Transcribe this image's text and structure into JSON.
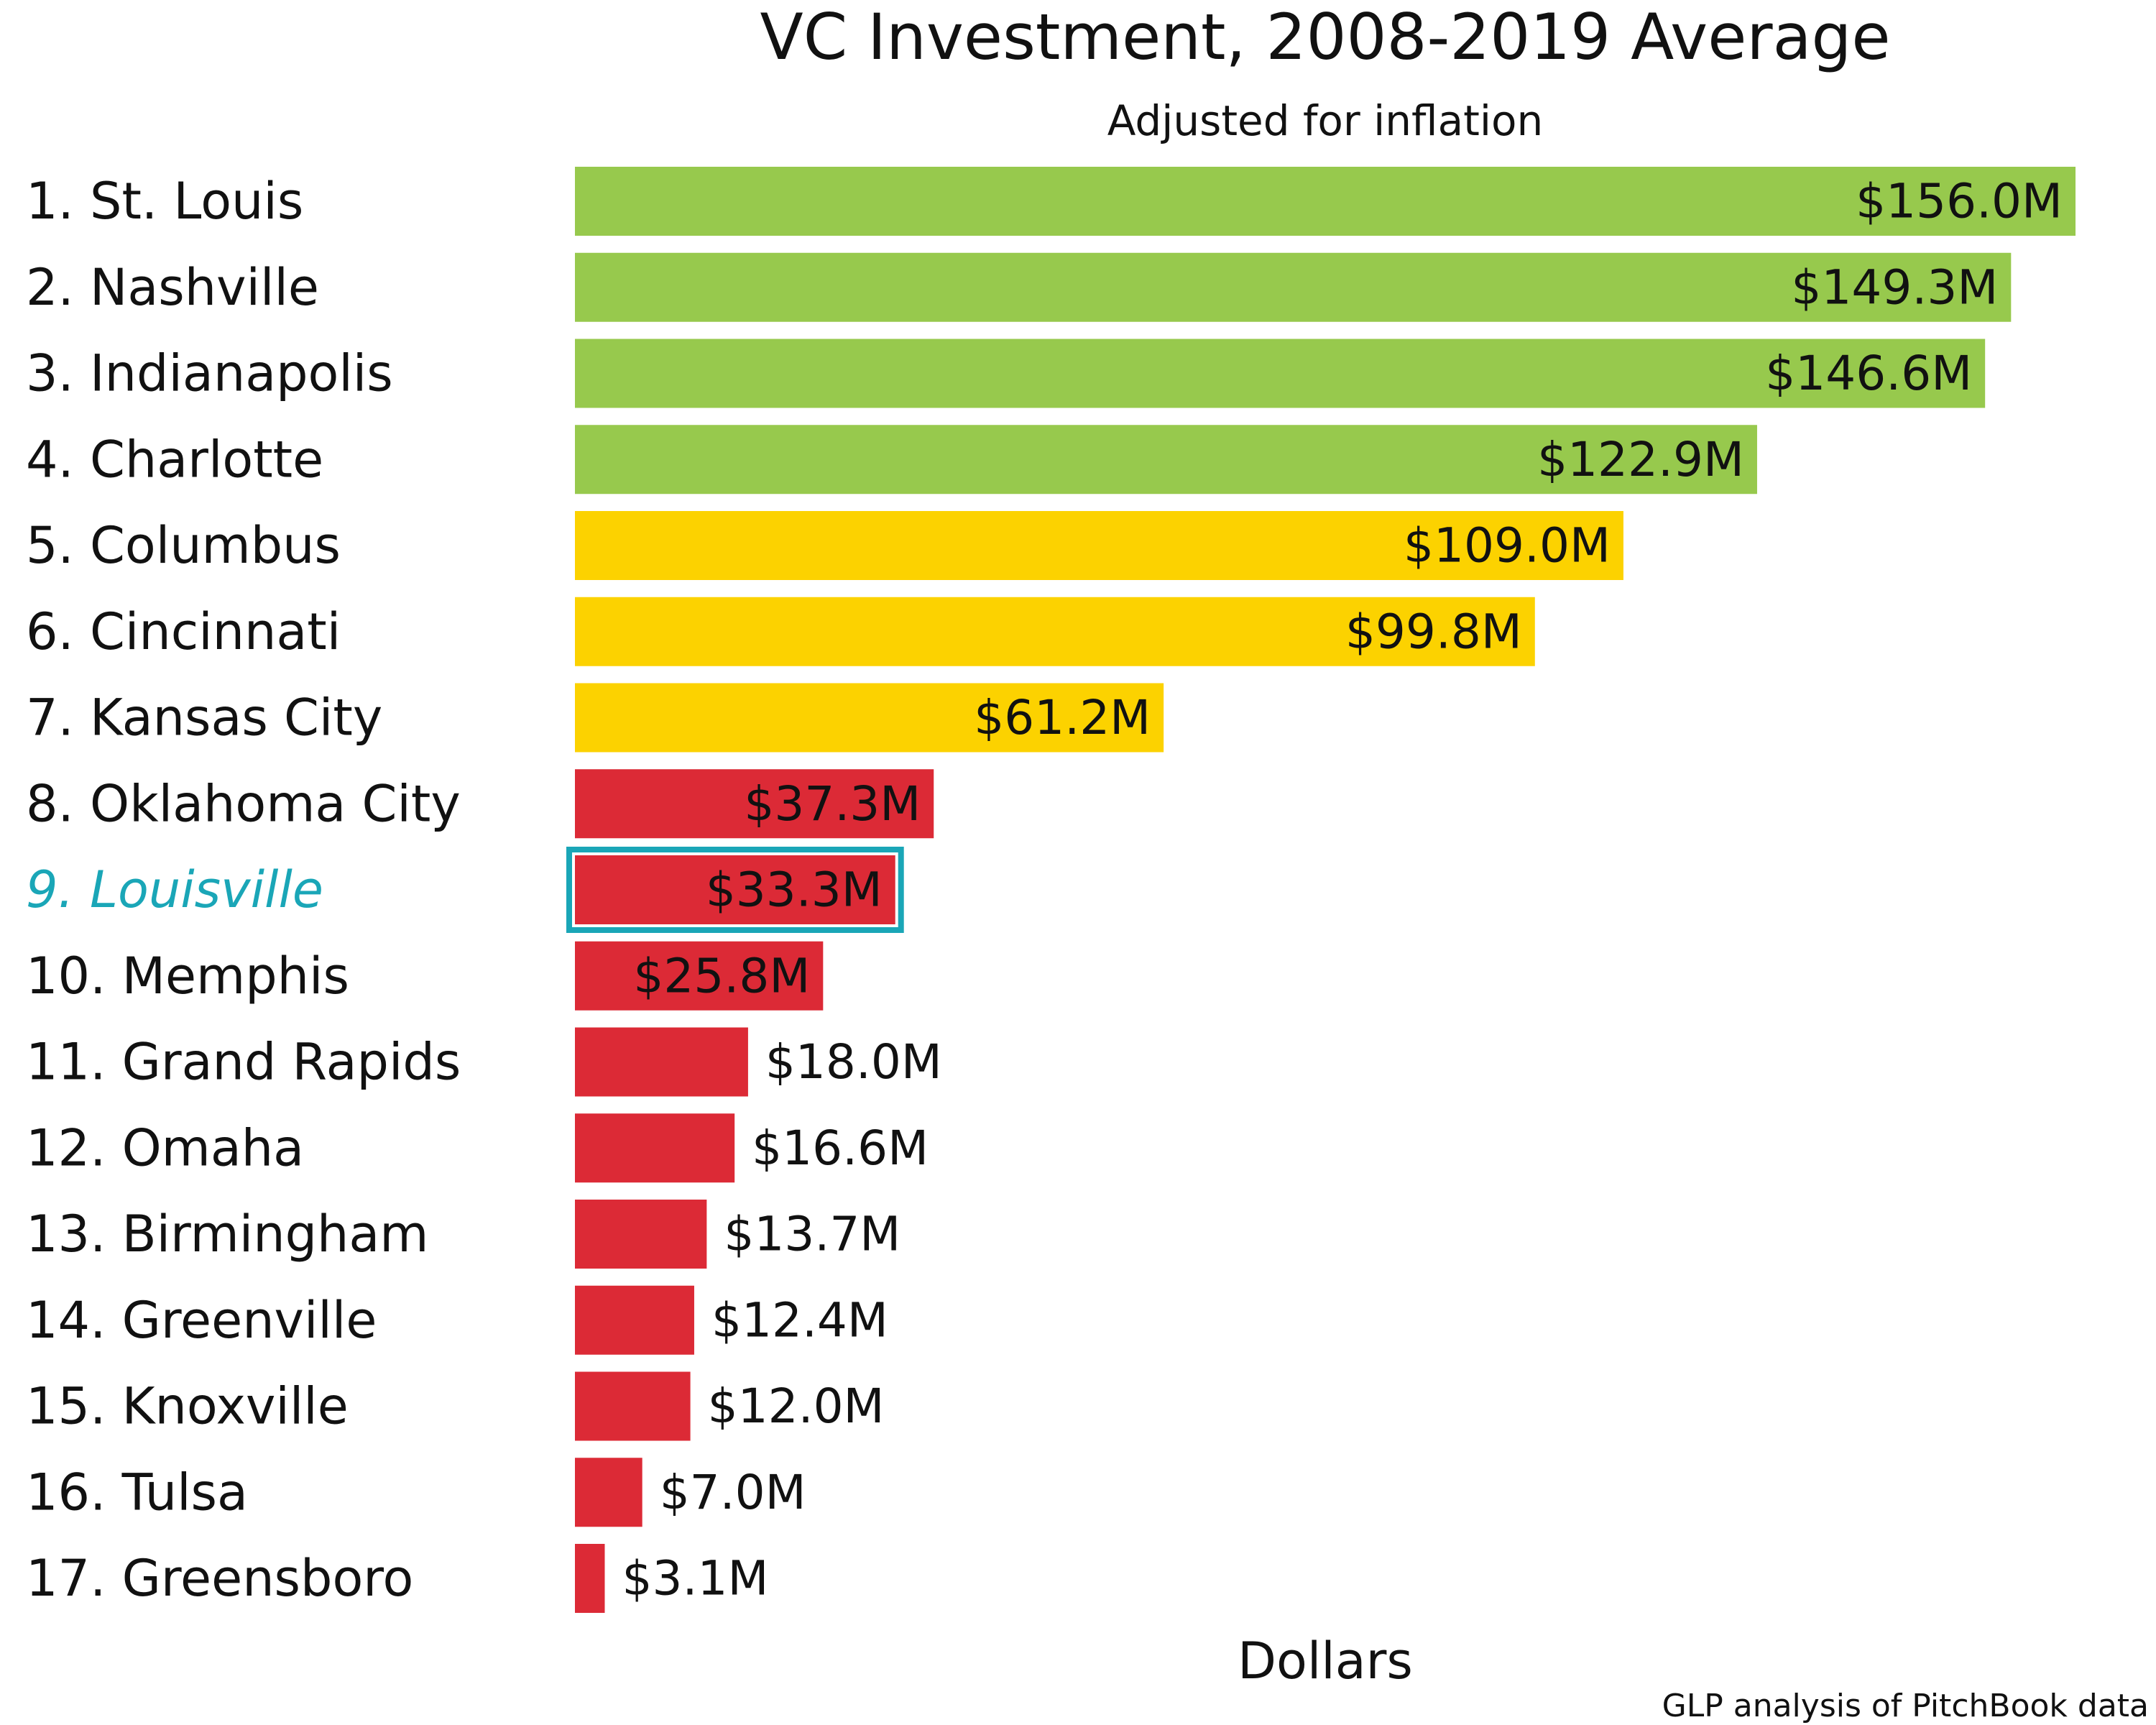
{
  "chart_data": {
    "type": "bar",
    "orientation": "horizontal",
    "title": "VC Investment, 2008-2019 Average",
    "subtitle": "Adjusted for inflation",
    "xlabel": "Dollars",
    "ylabel": "",
    "source": "GLP analysis of PitchBook data",
    "xlim": [
      0,
      156
    ],
    "grid": false,
    "legend": "none",
    "highlight_index": 8,
    "highlight_color": "#1aa6b7",
    "categories": [
      "1. St. Louis",
      "2. Nashville",
      "3. Indianapolis",
      "4. Charlotte",
      "5. Columbus",
      "6. Cincinnati",
      "7. Kansas City",
      "8. Oklahoma City",
      "9. Louisville",
      "10. Memphis",
      "11. Grand Rapids",
      "12. Omaha",
      "13. Birmingham",
      "14. Greenville",
      "15. Knoxville",
      "16. Tulsa",
      "17. Greensboro"
    ],
    "values": [
      156.0,
      149.3,
      146.6,
      122.9,
      109.0,
      99.8,
      61.2,
      37.3,
      33.3,
      25.8,
      18.0,
      16.6,
      13.7,
      12.4,
      12.0,
      7.0,
      3.1
    ],
    "value_labels": [
      "$156.0M",
      "$149.3M",
      "$146.6M",
      "$122.9M",
      "$109.0M",
      "$99.8M",
      "$61.2M",
      "$37.3M",
      "$33.3M",
      "$25.8M",
      "$18.0M",
      "$16.6M",
      "$13.7M",
      "$12.4M",
      "$12.0M",
      "$7.0M",
      "$3.1M"
    ],
    "bar_colors": [
      "#97c94d",
      "#97c94d",
      "#97c94d",
      "#97c94d",
      "#fcd200",
      "#fcd200",
      "#fcd200",
      "#dc2a36",
      "#dc2a36",
      "#dc2a36",
      "#dc2a36",
      "#dc2a36",
      "#dc2a36",
      "#dc2a36",
      "#dc2a36",
      "#dc2a36",
      "#dc2a36"
    ]
  }
}
